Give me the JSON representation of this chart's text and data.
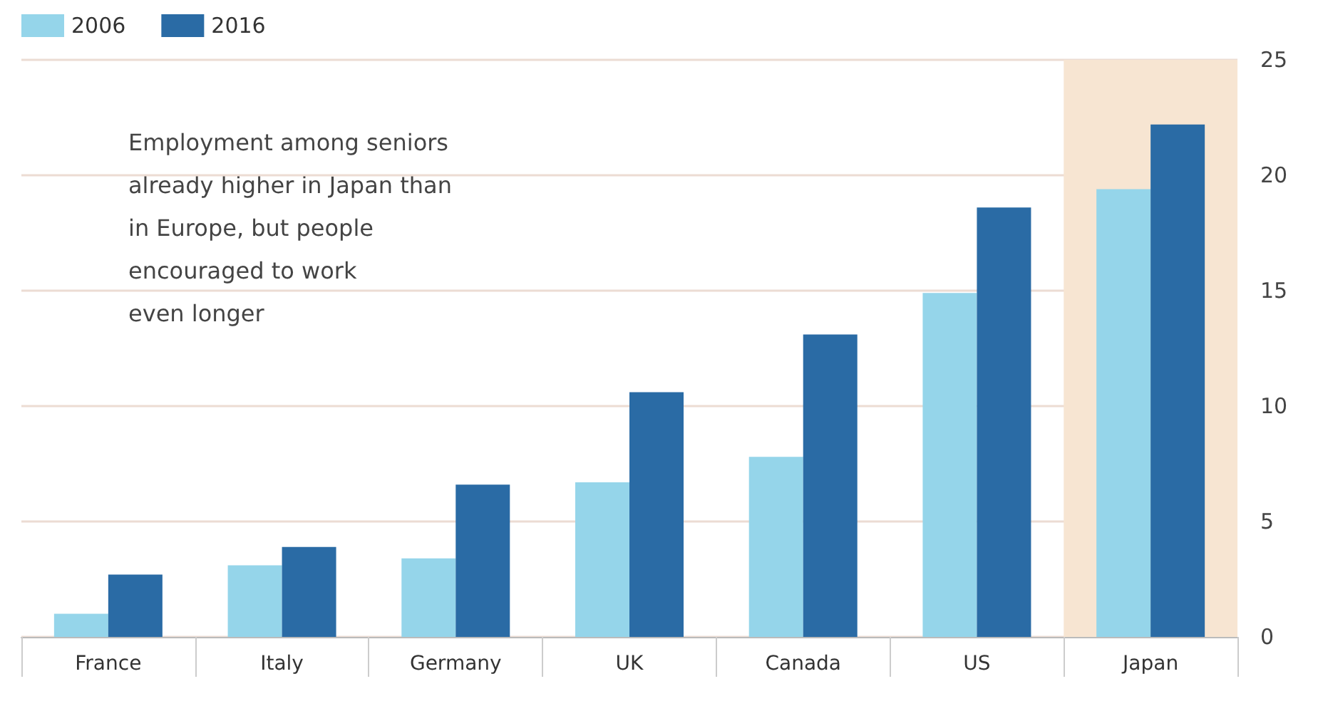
{
  "chart_data": {
    "type": "bar",
    "categories": [
      "France",
      "Italy",
      "Germany",
      "UK",
      "Canada",
      "US",
      "Japan"
    ],
    "series": [
      {
        "name": "2006",
        "color": "#95d5ea",
        "values": [
          1.0,
          3.1,
          3.4,
          6.7,
          7.8,
          14.9,
          19.4
        ]
      },
      {
        "name": "2016",
        "color": "#2a6ba5",
        "values": [
          2.7,
          3.9,
          6.6,
          10.6,
          13.1,
          18.6,
          22.2
        ]
      }
    ],
    "ylim": [
      0,
      25
    ],
    "yticks": [
      0,
      5,
      10,
      15,
      20,
      25
    ],
    "grid": "y",
    "legend": "top left",
    "annotations": [
      "Employment among seniors\nalready higher in Japan than\nin Europe, but people\nencouraged to work\neven longer"
    ],
    "bands": [
      {
        "axis": "x",
        "from": "Japan",
        "to": "Japan",
        "color": "#f7e5d2"
      }
    ]
  }
}
